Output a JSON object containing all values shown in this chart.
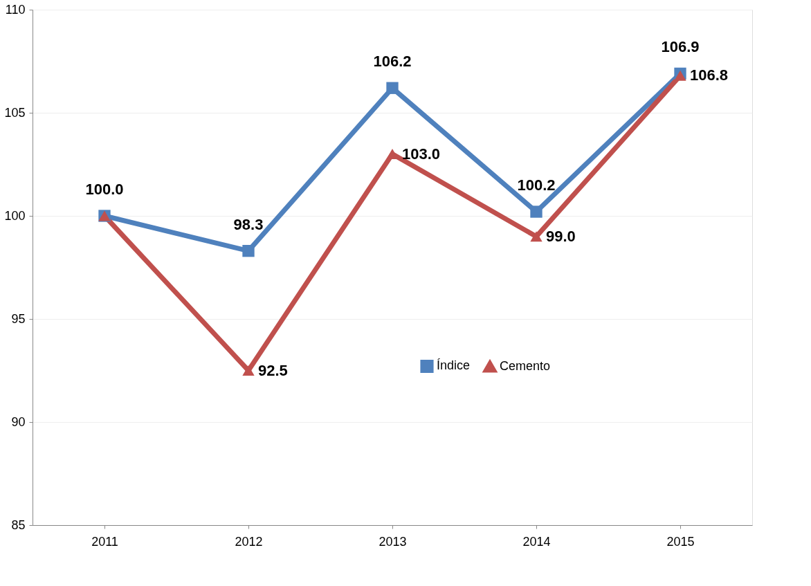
{
  "chart_data": {
    "type": "line",
    "categories": [
      "2011",
      "2012",
      "2013",
      "2014",
      "2015"
    ],
    "series": [
      {
        "name": "Índice",
        "color": "#4f81bd",
        "marker": "square",
        "values": [
          100.0,
          98.3,
          106.2,
          100.2,
          106.9
        ],
        "value_labels": [
          "100.0",
          "98.3",
          "106.2",
          "100.2",
          "106.9"
        ]
      },
      {
        "name": "Cemento",
        "color": "#c0504d",
        "marker": "triangle",
        "values": [
          100.0,
          92.5,
          103.0,
          99.0,
          106.8
        ],
        "value_labels": [
          null,
          "92.5",
          "103.0",
          "99.0",
          "106.8"
        ]
      }
    ],
    "ylim": [
      85,
      110
    ],
    "yticks": [
      85,
      90,
      95,
      100,
      105,
      110
    ],
    "grid": "y",
    "legend": "right",
    "line_style": "solid"
  }
}
